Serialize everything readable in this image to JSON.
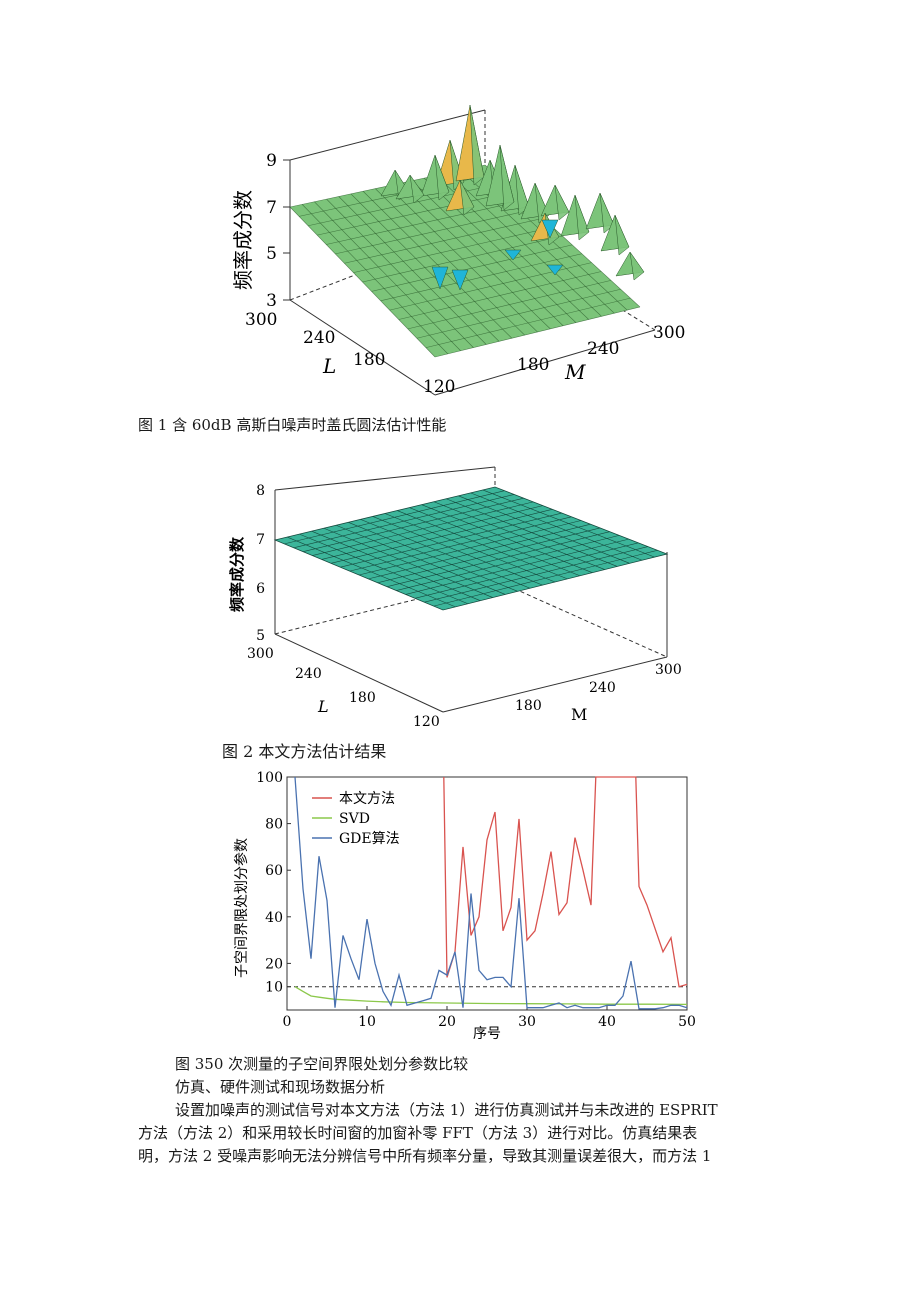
{
  "figure1": {
    "zlabel": "频率成分数",
    "ztick_labels": [
      "9",
      "7",
      "5",
      "3"
    ],
    "l_label": "L",
    "m_label": "M",
    "l_tick_labels": [
      "300",
      "240",
      "180",
      "120"
    ],
    "m_tick_labels": [
      "180",
      "240",
      "300"
    ],
    "caption": "图 1 含 60dB 高斯白噪声时盖氏圆法估计性能",
    "colors": {
      "surface": "#7cc47a",
      "peak_yellow": "#e8b84a",
      "dip_cyan": "#1fb5d8",
      "grid": "#2a5a2a"
    }
  },
  "figure2": {
    "zlabel": "频率成分数",
    "ztick_labels": [
      "8",
      "7",
      "6",
      "5"
    ],
    "l_label": "L",
    "m_label": "M",
    "l_tick_labels": [
      "300",
      "240",
      "180",
      "120"
    ],
    "m_tick_labels": [
      "180",
      "240",
      "300"
    ],
    "caption": "图 2 本文方法估计结果",
    "colors": {
      "surface": "#3cb59a",
      "grid": "#154a3e"
    }
  },
  "figure3": {
    "caption": "图 350 次测量的子空间界限处划分参数比较",
    "chart_data": {
      "type": "line",
      "xlabel": "序号",
      "ylabel": "子空间界限处划分参数",
      "xlim": [
        0,
        50
      ],
      "ylim": [
        0,
        100
      ],
      "xticks": [
        0,
        10,
        20,
        30,
        40,
        50
      ],
      "yticks": [
        10,
        20,
        40,
        60,
        80,
        100
      ],
      "reference_lines": [
        100,
        10
      ],
      "legend_position": "top-left",
      "series": [
        {
          "name": "本文方法",
          "color": "#d9534f",
          "x": [
            19.6,
            20,
            21,
            22,
            23,
            24,
            25,
            26,
            27,
            28,
            29,
            30,
            31,
            32,
            33,
            34,
            35,
            36,
            37,
            38,
            38.6,
            43.6,
            44,
            45,
            46,
            47,
            48,
            49,
            50
          ],
          "y": [
            100,
            14,
            25,
            70,
            32,
            40,
            73,
            85,
            34,
            44,
            82,
            30,
            34,
            50,
            68,
            41,
            46,
            74,
            60,
            45,
            100,
            100,
            53,
            45,
            35,
            25,
            31,
            10,
            11
          ]
        },
        {
          "name": "SVD",
          "color": "#8cc84b",
          "x": [
            1,
            2,
            3,
            4,
            5,
            6,
            8,
            10,
            12,
            15,
            20,
            25,
            30,
            35,
            40,
            45,
            50
          ],
          "y": [
            10,
            8,
            6,
            5.5,
            5,
            4.6,
            4.2,
            3.8,
            3.5,
            3.2,
            3,
            2.8,
            2.7,
            2.6,
            2.5,
            2.5,
            2.4
          ]
        },
        {
          "name": "GDE算法",
          "color": "#4a72b0",
          "x": [
            1,
            2,
            3,
            4,
            5,
            6,
            7,
            8,
            9,
            10,
            11,
            12,
            13,
            14,
            15,
            16,
            17,
            18,
            19,
            20,
            21,
            22,
            23,
            24,
            25,
            26,
            27,
            28,
            29,
            30,
            31,
            32,
            33,
            34,
            35,
            36,
            37,
            38,
            39,
            40,
            41,
            42,
            43,
            44,
            45,
            46,
            47,
            48,
            49,
            50
          ],
          "y": [
            100,
            52,
            22,
            66,
            47,
            1,
            32,
            22,
            13,
            39,
            20,
            8,
            2,
            15,
            2,
            3,
            4,
            5,
            17,
            15,
            25,
            1,
            50,
            17,
            13,
            14,
            14,
            10,
            48,
            1,
            1,
            1,
            2,
            3,
            1,
            2,
            1,
            1,
            1,
            2,
            2,
            6,
            21,
            0.5,
            0.5,
            0.5,
            1,
            2,
            2,
            1
          ]
        }
      ]
    }
  },
  "text": {
    "section_heading": "仿真、硬件测试和现场数据分析",
    "para_line1": "设置加噪声的测试信号对本文方法（方法 1）进行仿真测试并与未改进的 ESPRIT",
    "para_line2": "方法（方法 2）和采用较长时间窗的加窗补零 FFT（方法 3）进行对比。仿真结果表",
    "para_line3": "明，方法 2 受噪声影响无法分辨信号中所有频率分量，导致其测量误差很大，而方法 1"
  }
}
